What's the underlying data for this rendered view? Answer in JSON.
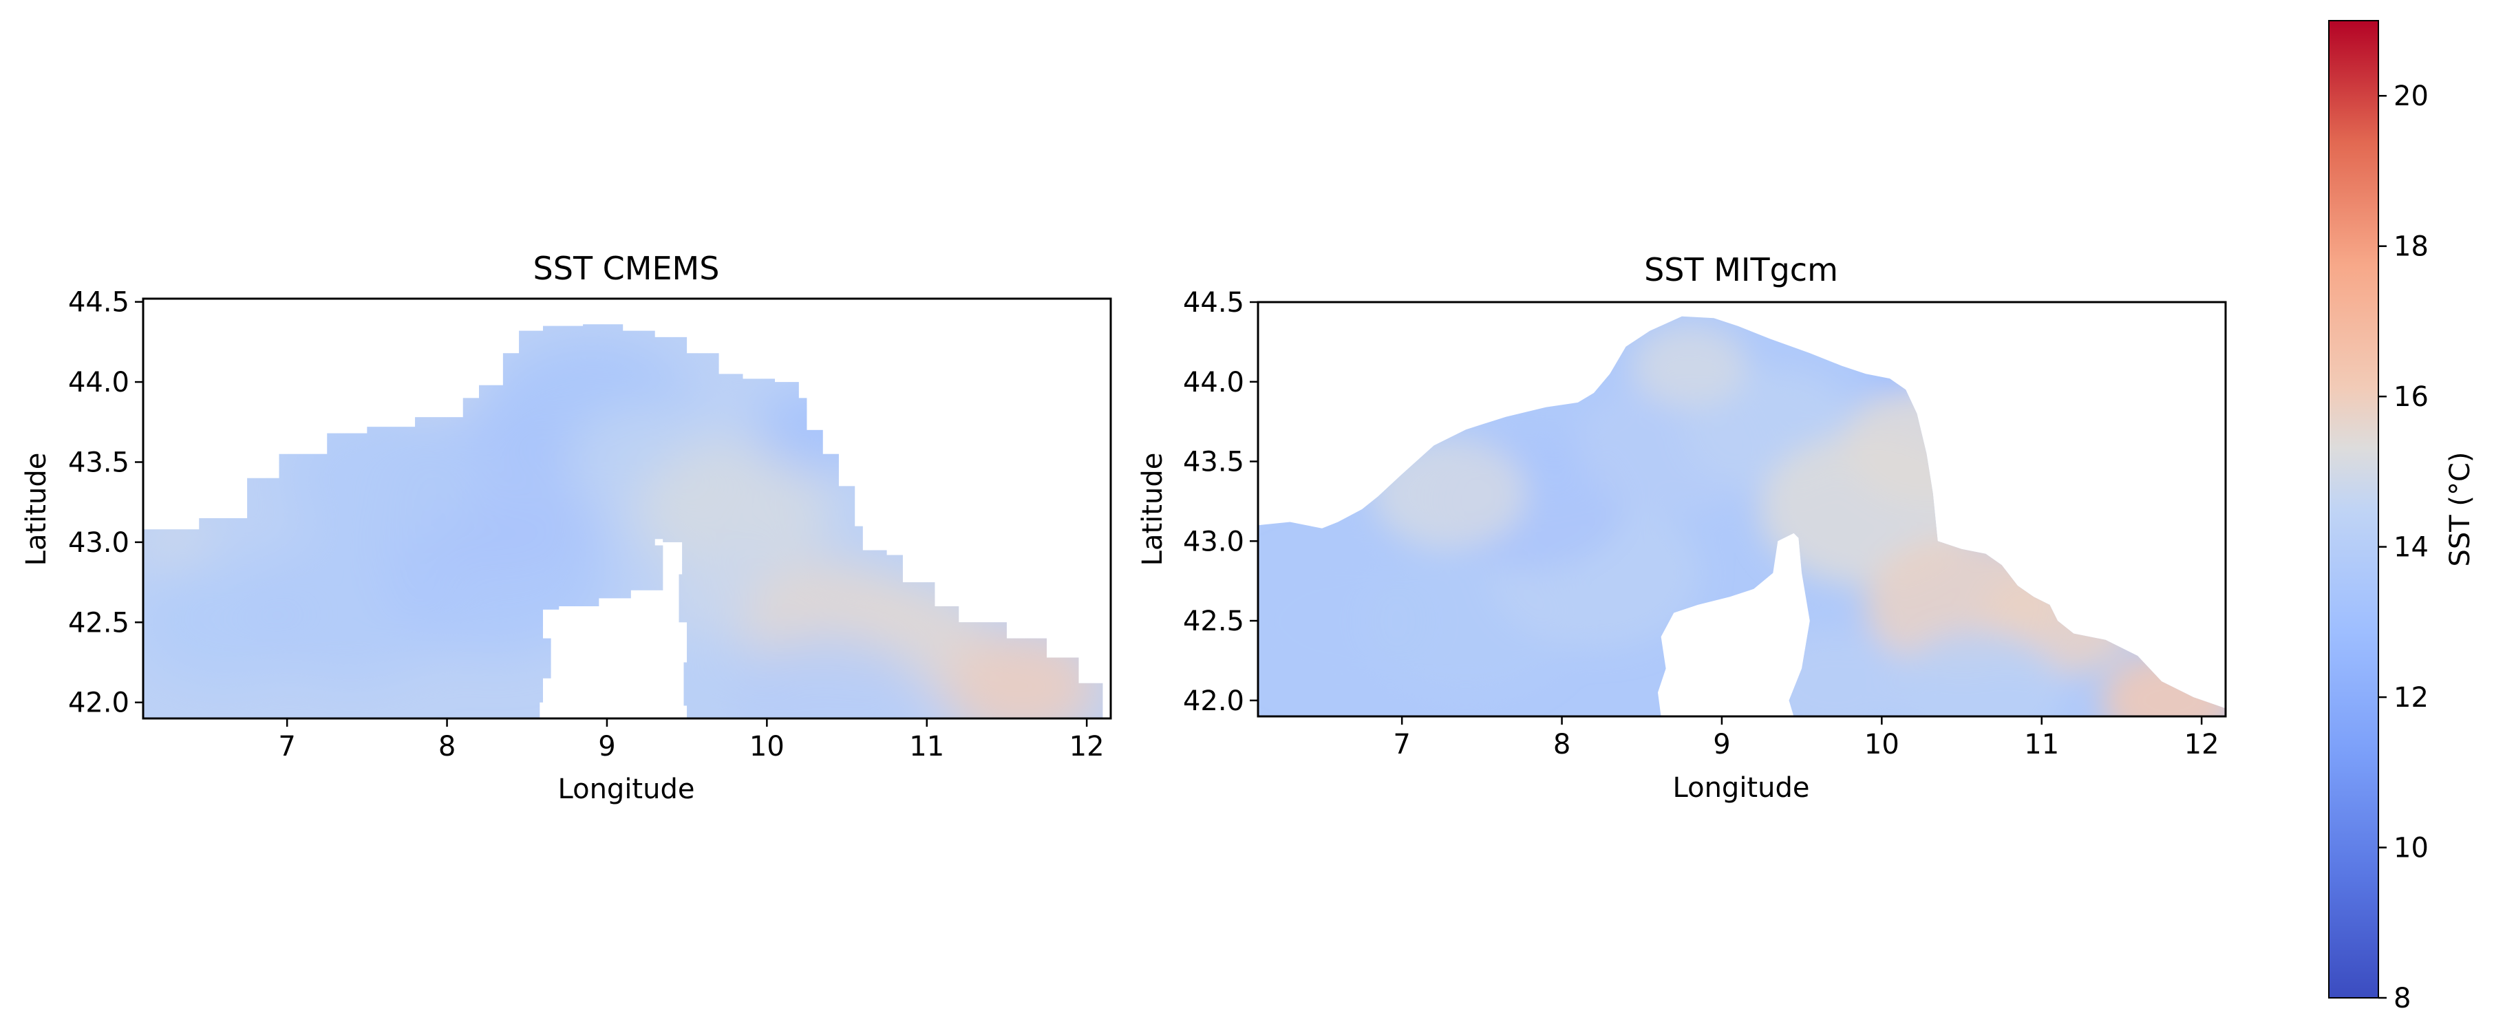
{
  "colors": {
    "cold": "#3b4cc0",
    "mid": "#dddddd",
    "warm": "#b40426",
    "land": "#ffffff",
    "axes": "#000000"
  },
  "colorbar": {
    "label": "SST (°C)",
    "range": [
      8,
      21
    ],
    "ticks": [
      "8",
      "10",
      "12",
      "14",
      "16",
      "18",
      "20"
    ],
    "colormap": "coolwarm"
  },
  "chart_data": [
    {
      "type": "heatmap",
      "title": "SST CMEMS",
      "xlabel": "Longitude",
      "ylabel": "Latitude",
      "xlim": [
        6.1,
        12.15
      ],
      "ylim": [
        41.9,
        44.52
      ],
      "xticks": [
        "7",
        "8",
        "9",
        "10",
        "11",
        "12"
      ],
      "yticks": [
        "42.0",
        "42.5",
        "43.0",
        "43.5",
        "44.0",
        "44.5"
      ],
      "temperature_range": [
        12.8,
        16.2
      ],
      "resolution": "coarse",
      "grid": false
    },
    {
      "type": "heatmap",
      "title": "SST MITgcm",
      "xlabel": "Longitude",
      "ylabel": "Latitude",
      "xlim": [
        6.1,
        12.15
      ],
      "ylim": [
        41.9,
        44.5
      ],
      "xticks": [
        "7",
        "8",
        "9",
        "10",
        "11",
        "12"
      ],
      "yticks": [
        "42.0",
        "42.5",
        "43.0",
        "43.5",
        "44.0",
        "44.5"
      ],
      "temperature_range": [
        11.5,
        16.3
      ],
      "resolution": "fine",
      "grid": false
    }
  ]
}
